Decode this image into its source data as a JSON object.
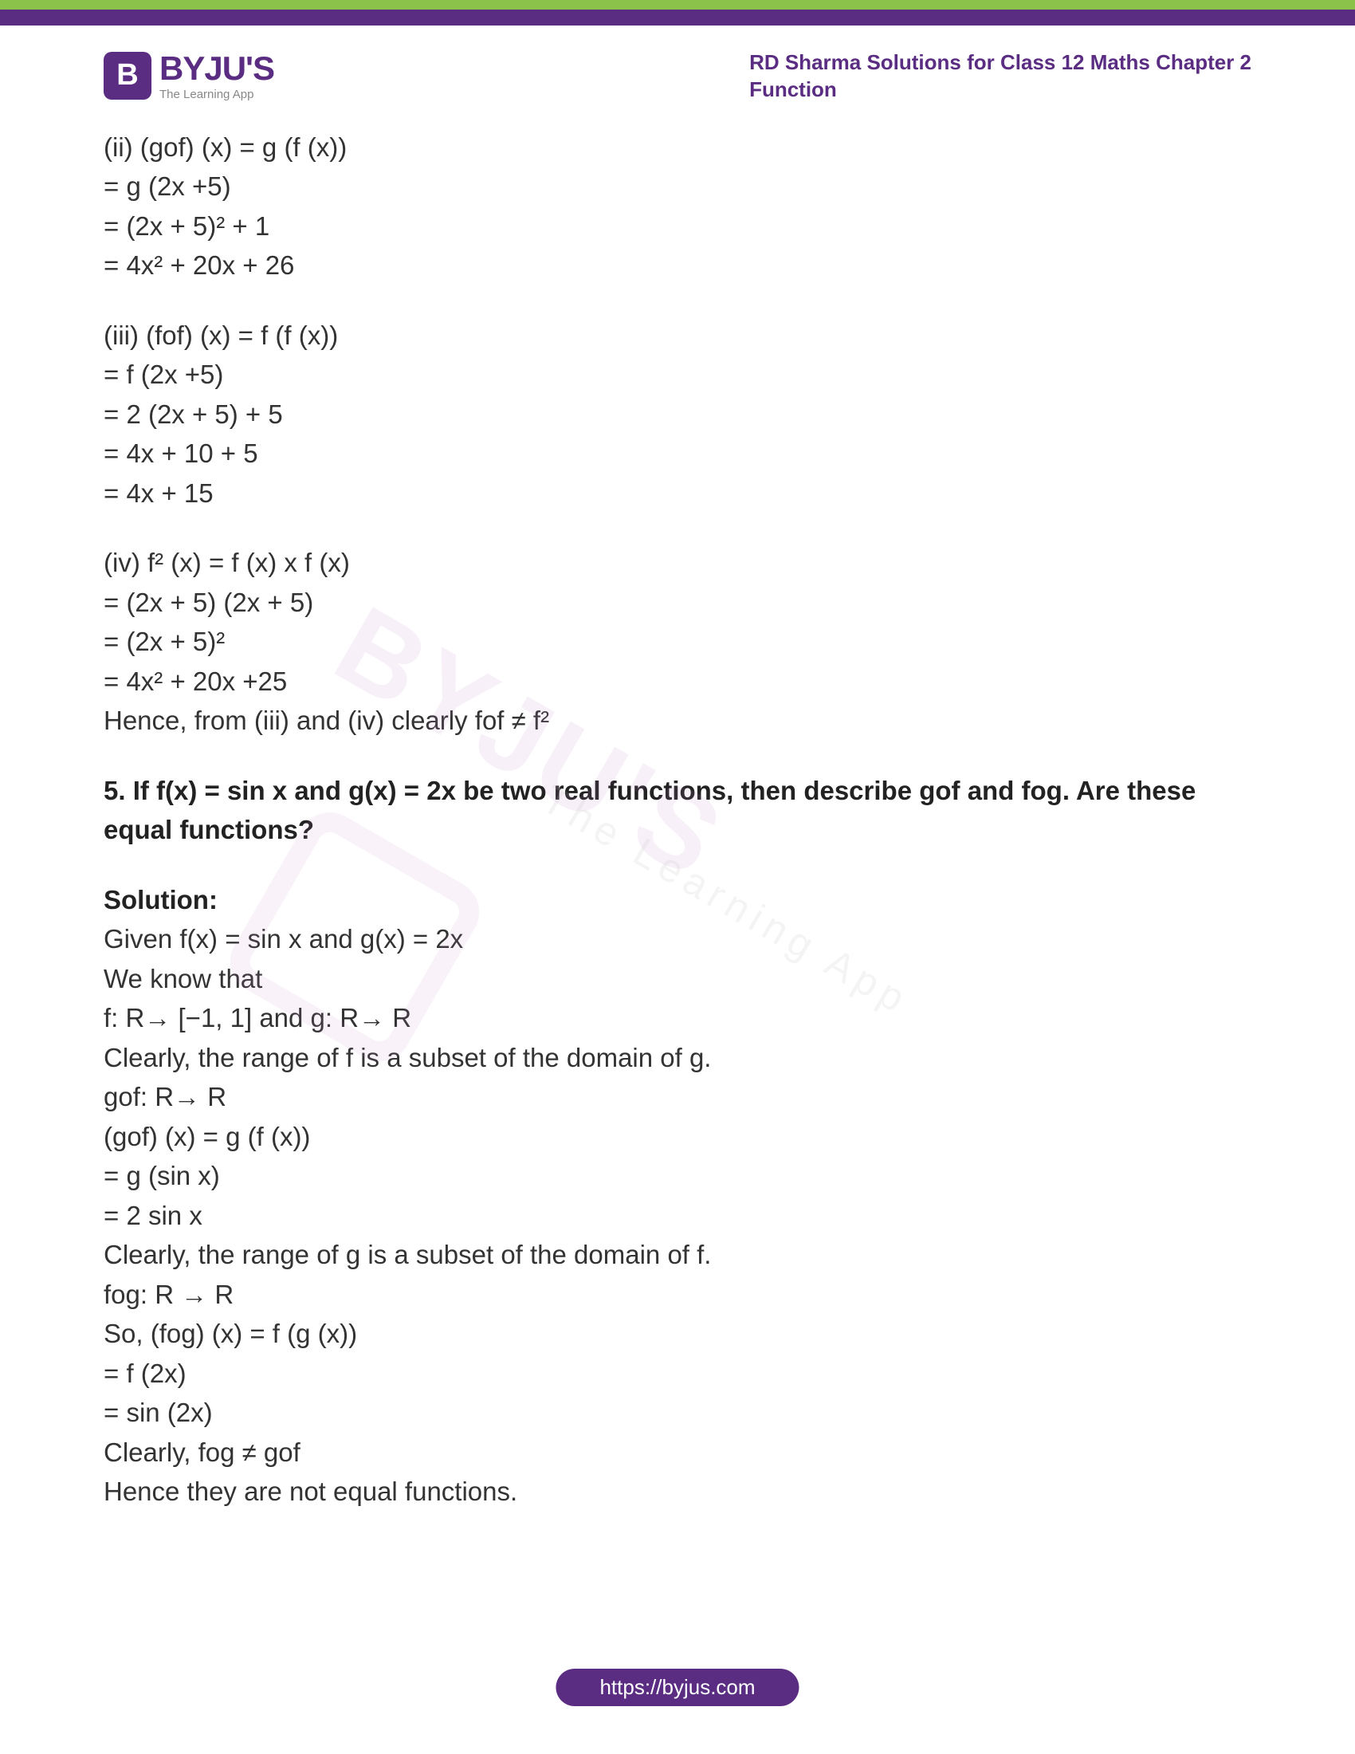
{
  "colors": {
    "green_bar": "#8bc34a",
    "purple_bar": "#5a2d82",
    "text_main": "#333333",
    "text_heading": "#222222",
    "logo_purple": "#5a2d82",
    "watermark": "rgba(200,130,200,0.12)",
    "background": "#ffffff"
  },
  "typography": {
    "body_fontsize": 33,
    "header_fontsize": 26,
    "logo_title_fontsize": 42,
    "footer_fontsize": 26
  },
  "header": {
    "logo_letter": "B",
    "logo_title": "BYJU'S",
    "logo_subtitle": "The Learning App",
    "right_line1": "RD Sharma Solutions for Class 12 Maths Chapter 2",
    "right_line2": "Function"
  },
  "watermark": {
    "main": "BYJU'S",
    "sub": "The Learning App"
  },
  "content": {
    "para1": {
      "l1": "(ii) (gof) (x) = g (f (x))",
      "l2": "= g (2x +5)",
      "l3": " = (2x + 5)² + 1",
      "l4": "= 4x² + 20x + 26"
    },
    "para2": {
      "l1": "(iii) (fof) (x) = f (f (x))",
      "l2": "= f (2x +5)",
      "l3": "= 2 (2x + 5) + 5",
      "l4": "= 4x + 10 + 5",
      "l5": "= 4x + 15"
    },
    "para3": {
      "l1": "(iv) f² (x) = f (x) x f (x)",
      "l2": "= (2x + 5) (2x + 5)",
      "l3": "= (2x + 5)²",
      "l4": "= 4x² + 20x +25",
      "l5": "Hence, from (iii) and (iv) clearly fof ≠ f²"
    },
    "question5": "5. If f(x) = sin x and g(x) = 2x be two real functions, then describe gof and fog. Are these equal functions?",
    "solution_label": "Solution:",
    "sol": {
      "l1": "Given f(x) = sin x and g(x) = 2x",
      "l2": "We know that",
      "l3": "f: R→ [−1, 1] and g: R→ R",
      "l4": "Clearly, the range of f is a subset of the domain of g.",
      "l5": "gof: R→ R",
      "l6": "(gof) (x) = g (f (x))",
      "l7": "= g (sin x)",
      "l8": "= 2 sin x",
      "l9": "Clearly, the range of g is a subset of the domain of f.",
      "l10": "fog: R → R",
      "l11": "So, (fog) (x) = f (g (x))",
      "l12": "= f (2x)",
      "l13": "= sin (2x)",
      "l14": "Clearly, fog ≠ gof",
      "l15": "Hence they are not equal functions."
    }
  },
  "footer": {
    "url": "https://byjus.com"
  }
}
